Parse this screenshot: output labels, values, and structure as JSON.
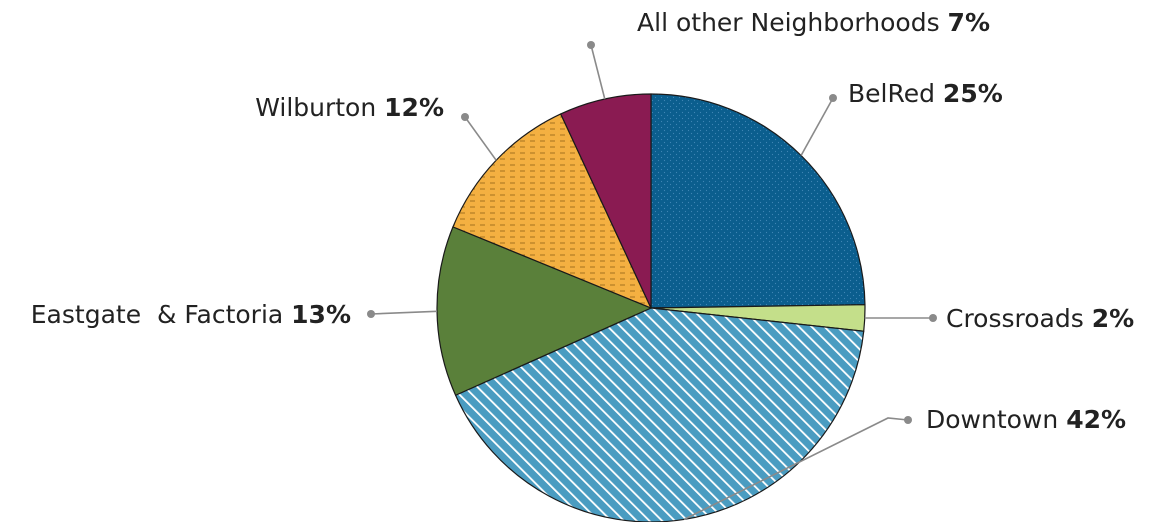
{
  "chart_data": {
    "type": "pie",
    "start_angle_deg": 0,
    "direction": "clockwise",
    "slices": [
      {
        "label": "BelRed",
        "value": 25,
        "value_text": "25%",
        "color": "#0b5e8e",
        "pattern": "dots"
      },
      {
        "label": "Crossroads",
        "value": 2,
        "value_text": "2%",
        "color": "#c4df8a",
        "pattern": "none"
      },
      {
        "label": "Downtown",
        "value": 42,
        "value_text": "42%",
        "color": "#4a9cc1",
        "pattern": "diagonal-stripes"
      },
      {
        "label": "Eastgate  & Factoria",
        "value": 13,
        "value_text": "13%",
        "color": "#5a803a",
        "pattern": "none"
      },
      {
        "label": "Wilburton",
        "value": 12,
        "value_text": "12%",
        "color": "#f4b041",
        "pattern": "dashes"
      },
      {
        "label": "All other Neighborhoods",
        "value": 7,
        "value_text": "7%",
        "color": "#8a1b52",
        "pattern": "none"
      }
    ]
  }
}
